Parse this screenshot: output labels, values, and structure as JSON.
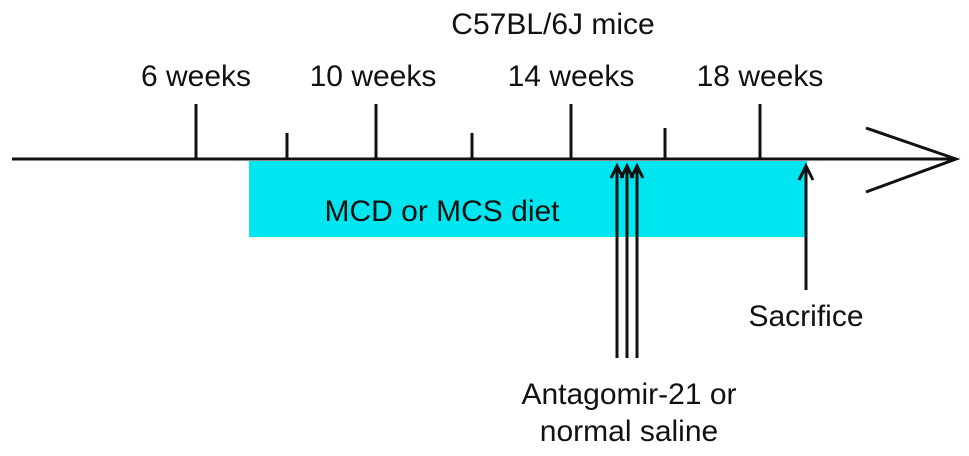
{
  "title": "C57BL/6J mice",
  "week_labels": [
    "6 weeks",
    "10 weeks",
    "14 weeks",
    "18 weeks"
  ],
  "diet_label": "MCD or MCS diet",
  "sacrifice_label": "Sacrifice",
  "injection_label_line1": "Antagomir-21 or",
  "injection_label_line2": "normal saline",
  "colors": {
    "diet_bar": "#00e6f0",
    "line": "#111111",
    "background": "#ffffff"
  }
}
